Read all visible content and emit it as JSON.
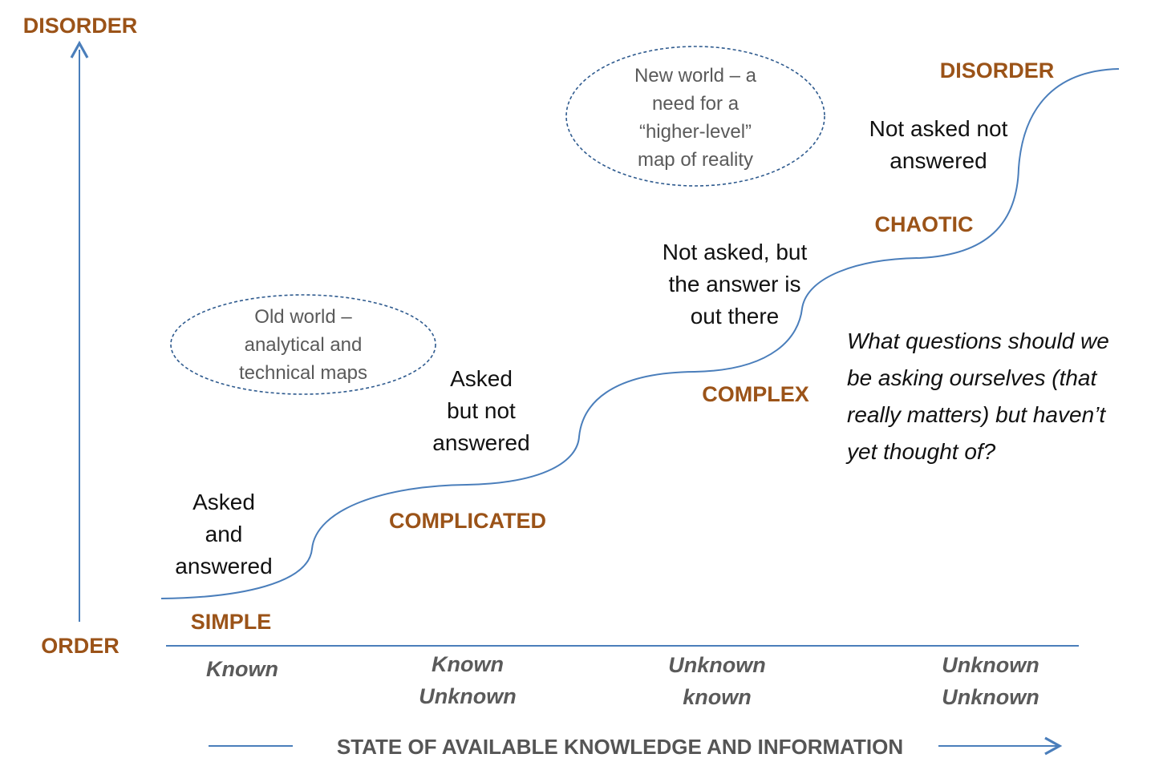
{
  "colors": {
    "accent_brown": "#9B5318",
    "line_blue": "#4A7EBB",
    "gray_text": "#5a5a5a"
  },
  "y_axis": {
    "top_label": "DISORDER",
    "bottom_label": "ORDER"
  },
  "x_axis": {
    "title": "STATE OF AVAILABLE KNOWLEDGE AND INFORMATION",
    "categories": [
      [
        "Known"
      ],
      [
        "Known",
        "Unknown"
      ],
      [
        "Unknown",
        "known"
      ],
      [
        "Unknown",
        "Unknown"
      ]
    ]
  },
  "stages": [
    "SIMPLE",
    "COMPLICATED",
    "COMPLEX",
    "CHAOTIC",
    "DISORDER"
  ],
  "descriptions": [
    [
      "Asked",
      "and",
      "answered"
    ],
    [
      "Asked",
      "but not",
      "answered"
    ],
    [
      "Not asked, but",
      "the answer is",
      "out there"
    ],
    [
      "Not asked not",
      "answered"
    ]
  ],
  "worlds": {
    "old": [
      "Old world –",
      "analytical and",
      "technical maps"
    ],
    "new": [
      "New world – a",
      "need for a",
      "“higher-level”",
      "map of reality"
    ]
  },
  "question": [
    "What questions should we",
    "be asking ourselves (that",
    "really matters) but haven’t",
    "yet thought of?"
  ]
}
